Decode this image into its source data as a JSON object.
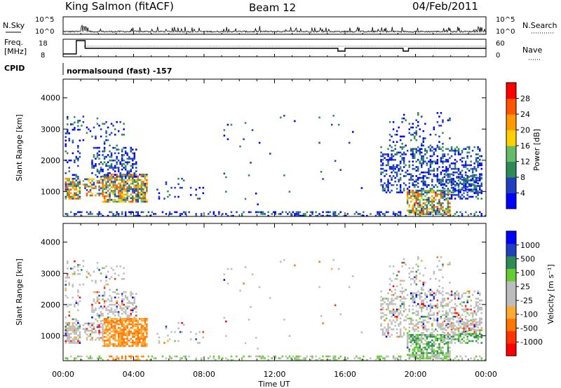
{
  "header": {
    "title": "King Salmon (fitACF)",
    "beam": "Beam 12",
    "date": "04/Feb/2011"
  },
  "status_panels": {
    "nsky_label": "N.Sky",
    "nsky_ticks": [
      "10^5",
      "10^0"
    ],
    "nsearch_label": "N.Search",
    "nsearch_ticks": [
      "10^5",
      "10^0"
    ],
    "freq_label_line1": "Freq.",
    "freq_label_line2": "[MHz]",
    "freq_ticks": [
      "18",
      "8"
    ],
    "nave_label": "Nave",
    "nave_ticks": [
      "60",
      "0"
    ],
    "cpid_label": "CPID",
    "cpid_text": "normalsound (fast) -157"
  },
  "colors": {
    "power_scale": [
      "#0000ff",
      "#1f3fbf",
      "#2e8b57",
      "#66bb6a",
      "#ffd000",
      "#ff9900",
      "#ff5500",
      "#ff0000"
    ],
    "velocity_scale": [
      "#ff0000",
      "#ff3300",
      "#ff7700",
      "#ffaa33",
      "#bdbdbd",
      "#bdbdbd",
      "#66cc33",
      "#2e8b57",
      "#1f3fbf",
      "#0000ff"
    ]
  },
  "chart_data": [
    {
      "type": "heatmap",
      "name": "power",
      "ylabel": "Slant Range [km]",
      "yticks": [
        "4000",
        "3000",
        "2000",
        "1000"
      ],
      "ylim": [
        200,
        4600
      ],
      "xlim": [
        0,
        24
      ],
      "xticks": [
        "00:00",
        "04:00",
        "08:00",
        "12:00",
        "16:00",
        "20:00",
        "00:00"
      ],
      "colorbar_label": "Power [dB]",
      "colorbar_ticks": [
        "28",
        "24",
        "20",
        "16",
        "12",
        "8",
        "4"
      ],
      "colorbar_range": [
        0,
        30
      ]
    },
    {
      "type": "heatmap",
      "name": "velocity",
      "ylabel": "Slant Range [km]",
      "yticks": [
        "4000",
        "3000",
        "2000",
        "1000"
      ],
      "ylim": [
        200,
        4600
      ],
      "xlim": [
        0,
        24
      ],
      "xticks": [
        "00:00",
        "04:00",
        "08:00",
        "12:00",
        "16:00",
        "20:00",
        "00:00"
      ],
      "xlabel": "Time UT",
      "colorbar_label": "Velocity [m s⁻¹]",
      "colorbar_ticks": [
        "1000",
        "500",
        "100",
        "25",
        "-25",
        "-100",
        "-500",
        "-1000"
      ]
    }
  ]
}
